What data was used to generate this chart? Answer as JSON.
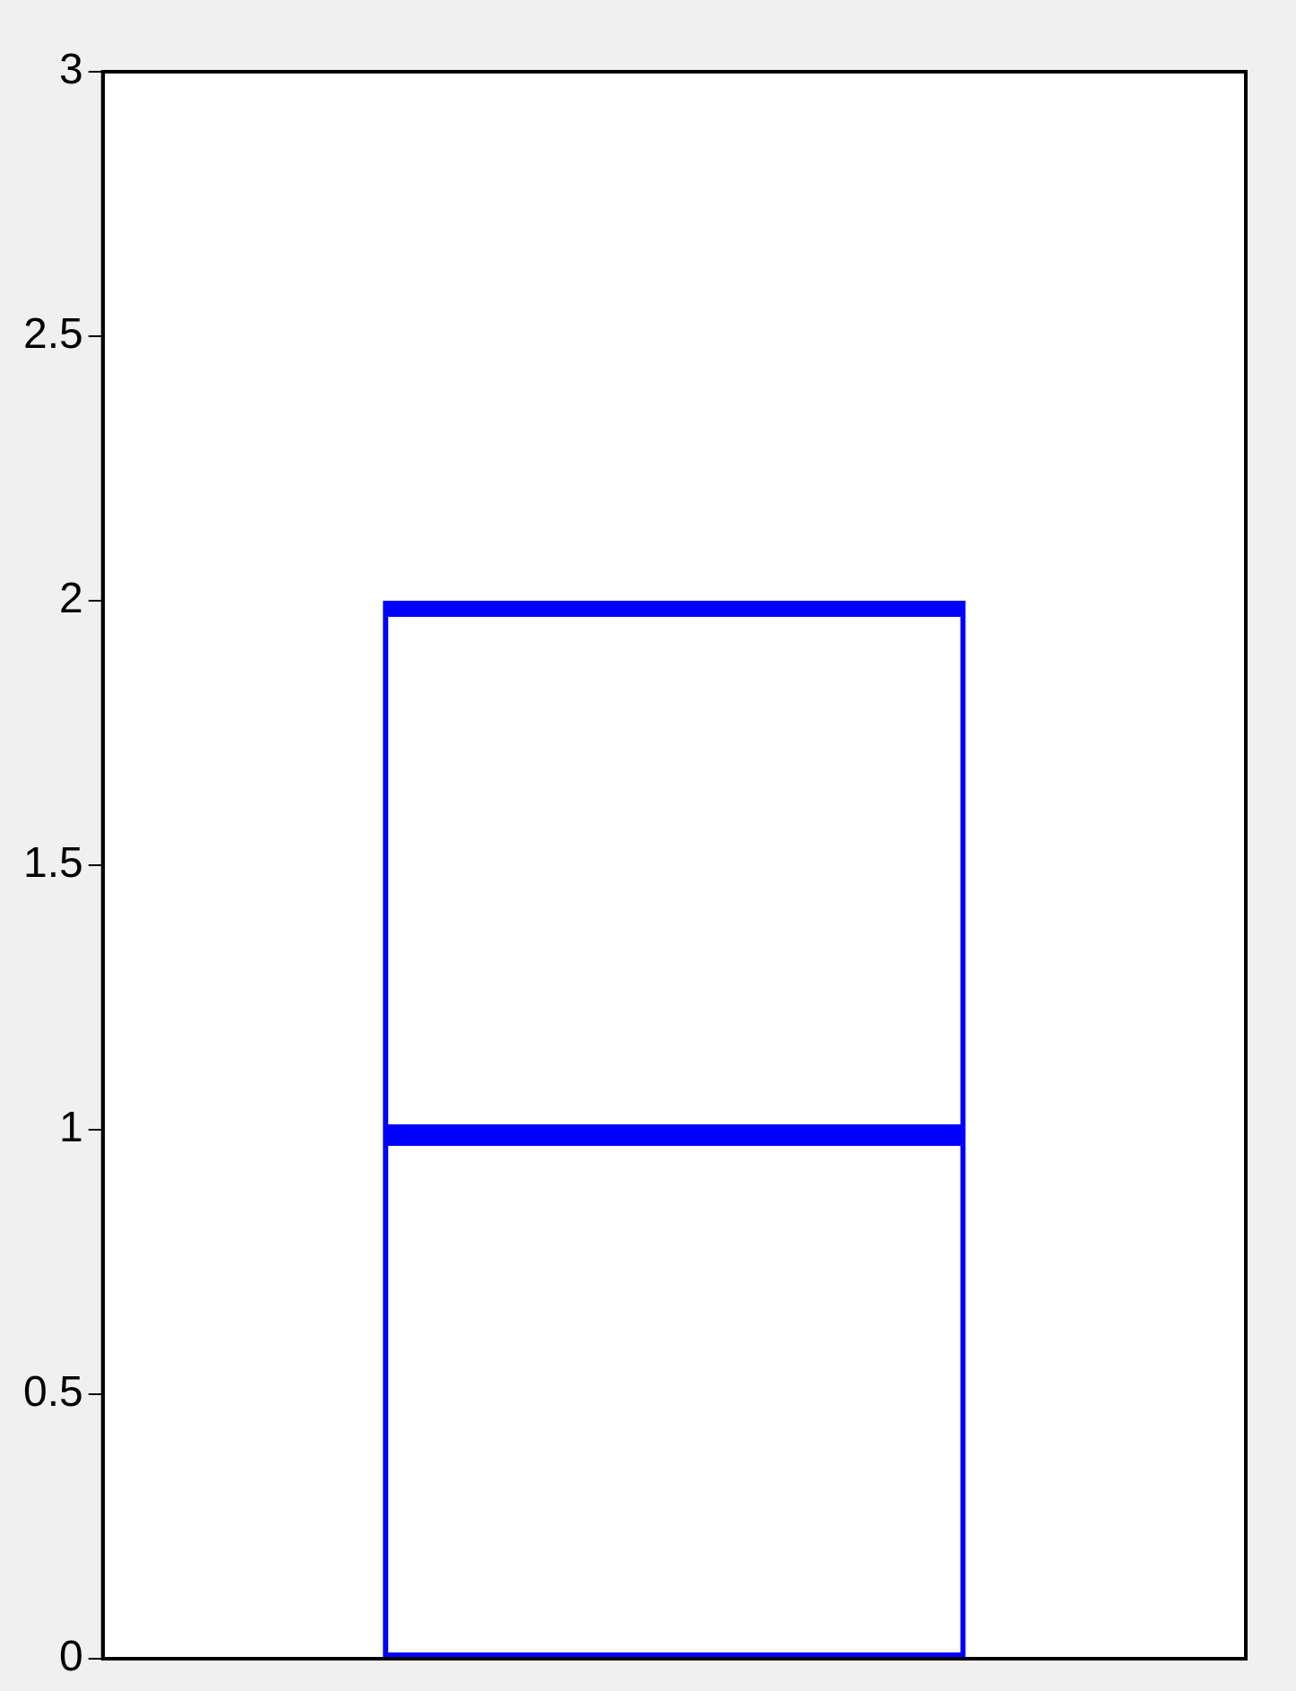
{
  "chart_data": {
    "type": "bar",
    "stacked": true,
    "categories": [
      null
    ],
    "series": [
      {
        "color": "#0000ff",
        "values": [
          1
        ]
      },
      {
        "color": "#0000ff",
        "values": [
          1
        ]
      }
    ],
    "ylim": [
      0,
      3
    ],
    "yticks": [
      0,
      0.5,
      1,
      1.5,
      2,
      2.5,
      3
    ],
    "grid": false,
    "legend": false,
    "tick_labels": "y"
  }
}
